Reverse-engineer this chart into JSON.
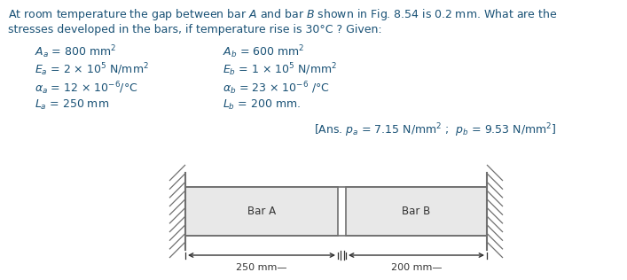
{
  "title_line1": "At room temperature the gap between bar $A$ and bar $B$ shown in Fig. 8.54 is 0.2 mm. What are the",
  "title_line2": "stresses developed in the bars, if temperature rise is 30°C ? Given:",
  "given_left": [
    "$A_a$ = 800 mm$^2$",
    "$E_a$ = 2 × 10$^5$ N/mm$^2$",
    "$\\alpha_a$ = 12 × 10$^{-6}$/°C",
    "$L_a$ = 250 mm"
  ],
  "given_right": [
    "$A_b$ = 600 mm$^2$",
    "$E_b$ = 1 × 10$^5$ N/mm$^2$",
    "$\\alpha_b$ = 23 × 10$^{-6}$ /°C",
    "$L_b$ = 200 mm."
  ],
  "answer": "[Ans. $p_a$ = 7.15 N/mm$^2$ ;  $p_b$ = 9.53 N/mm$^2$]",
  "bar_a_label": "Bar A",
  "bar_b_label": "Bar B",
  "dim_a": "250 mm—",
  "dim_b": "200 mm—",
  "text_color": "#1a5276",
  "bar_fill_color": "#e8e8e8",
  "bar_edge_color": "#707070",
  "hatch_color": "#707070",
  "background_color": "#ffffff",
  "fs_title": 9.0,
  "fs_body": 9.0,
  "fs_ans": 9.0,
  "fs_bar": 8.5,
  "fs_dim": 8.0
}
